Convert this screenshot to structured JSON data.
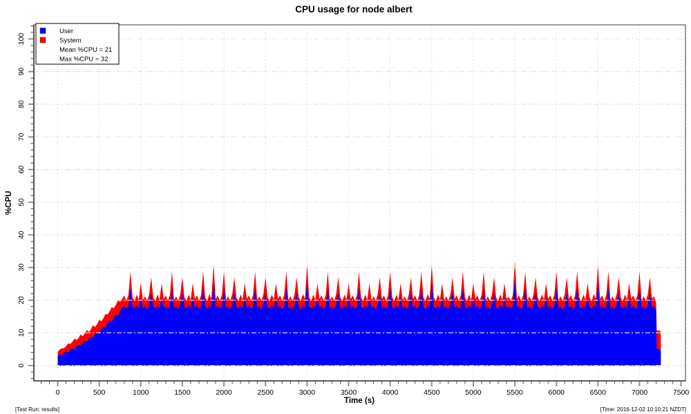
{
  "footer_left": "[Test Run: results]",
  "footer_right": "[Time: 2016-12-02 10:10:21 NZDT]",
  "chart_data": {
    "type": "area",
    "title": "CPU usage for node albert",
    "xlabel": "Time (s)",
    "ylabel": "%CPU",
    "xlim": [
      0,
      7500
    ],
    "ylim": [
      0,
      100
    ],
    "x_major_step": 500,
    "x_minor_step": 100,
    "y_major_step": 10,
    "y_minor_step": 2,
    "grid": true,
    "legend": {
      "position": "top-left",
      "entries": [
        {
          "label": "User",
          "color": "#0000ff"
        },
        {
          "label": "System",
          "color": "#ff0000"
        }
      ],
      "stats": [
        "Mean %CPU = 21",
        "Max %CPU = 32"
      ]
    },
    "stats": {
      "mean_cpu": 21,
      "max_cpu": 32
    },
    "colors": {
      "user": "#0000ff",
      "system": "#ff0000",
      "grid_v": "#e2e2e2",
      "grid_h": "#e6e6e6",
      "frame": "#8f8f8f",
      "axis": "#111111",
      "tick_major": "#8f8f8f",
      "tick_minor": "#444444"
    },
    "series_stacked": {
      "note": "user = blue bottom band, system = red thickness stacked on top; sampled every 25 s",
      "t0": 0,
      "dt": 25,
      "user": [
        3.0,
        3.3,
        3.1,
        3.8,
        4.2,
        4.0,
        4.8,
        5.2,
        5.0,
        5.9,
        6.3,
        6.1,
        7.0,
        7.6,
        7.3,
        8.2,
        8.8,
        8.5,
        9.6,
        10.3,
        10.0,
        11.2,
        12.0,
        11.6,
        13.0,
        13.8,
        13.4,
        14.8,
        15.6,
        15.2,
        16.6,
        17.7,
        18.3,
        17.4,
        18.1,
        23.8,
        17.9,
        17.5,
        18.4,
        17.6,
        20.9,
        17.5,
        18.2,
        17.2,
        18.6,
        22.4,
        17.9,
        17.5,
        18.4,
        17.6,
        20.9,
        17.7,
        18.3,
        17.4,
        18.1,
        23.8,
        17.5,
        18.2,
        17.2,
        18.6,
        22.4,
        17.9,
        17.5,
        18.4,
        17.6,
        20.9,
        17.7,
        18.3,
        17.4,
        18.1,
        23.8,
        18.0,
        17.3,
        18.5,
        17.8,
        25.6,
        17.7,
        18.3,
        17.4,
        18.1,
        23.8,
        17.5,
        18.2,
        17.2,
        18.6,
        22.4,
        17.9,
        17.5,
        18.4,
        17.6,
        20.9,
        17.7,
        18.3,
        17.4,
        18.1,
        23.8,
        17.5,
        18.2,
        17.2,
        18.6,
        22.4,
        17.9,
        17.5,
        18.4,
        17.6,
        20.9,
        17.7,
        18.3,
        17.4,
        18.1,
        23.8,
        17.5,
        18.2,
        17.2,
        18.6,
        22.4,
        18.0,
        17.3,
        18.5,
        17.8,
        25.6,
        17.9,
        17.5,
        18.4,
        17.6,
        20.9,
        17.7,
        18.3,
        17.4,
        18.1,
        23.8,
        17.5,
        18.2,
        17.2,
        18.6,
        22.4,
        17.9,
        17.5,
        18.4,
        17.6,
        20.9,
        17.7,
        18.3,
        17.4,
        18.1,
        23.8,
        17.9,
        17.5,
        18.4,
        17.6,
        20.9,
        17.5,
        18.2,
        17.2,
        18.6,
        22.4,
        17.7,
        18.3,
        17.4,
        18.1,
        23.8,
        17.9,
        17.5,
        18.4,
        17.6,
        20.9,
        17.5,
        18.2,
        17.2,
        18.6,
        22.4,
        17.7,
        18.3,
        17.4,
        18.1,
        23.8,
        18.0,
        17.3,
        18.5,
        17.8,
        25.6,
        17.9,
        17.5,
        18.4,
        17.6,
        20.9,
        17.5,
        18.2,
        17.2,
        18.6,
        22.4,
        17.7,
        18.3,
        17.4,
        18.1,
        23.8,
        17.9,
        17.5,
        18.4,
        17.6,
        20.9,
        17.7,
        18.3,
        17.4,
        18.1,
        23.8,
        17.5,
        18.2,
        17.2,
        18.6,
        22.4,
        17.9,
        17.5,
        18.4,
        17.6,
        20.9,
        17.8,
        18.1,
        17.5,
        18.3,
        26.5,
        17.7,
        18.3,
        17.4,
        18.1,
        23.8,
        17.5,
        18.2,
        17.2,
        18.6,
        22.4,
        17.9,
        17.5,
        18.4,
        17.6,
        20.9,
        17.7,
        18.3,
        17.4,
        18.1,
        23.8,
        17.5,
        18.2,
        17.2,
        18.6,
        22.4,
        17.7,
        18.3,
        17.4,
        18.1,
        23.8,
        17.9,
        17.5,
        18.4,
        17.6,
        20.9,
        18.0,
        17.3,
        18.5,
        17.8,
        25.6,
        17.7,
        18.3,
        17.4,
        18.1,
        23.8,
        17.5,
        18.2,
        17.2,
        18.6,
        22.4,
        17.9,
        17.5,
        18.4,
        17.6,
        20.9,
        17.7,
        18.3,
        17.4,
        18.1,
        23.8,
        17.5,
        18.2,
        17.2,
        18.6,
        22.4,
        17.8,
        18.2,
        16.8
      ],
      "system": [
        1.2,
        1.6,
        2.2,
        1.5,
        1.7,
        2.8,
        1.8,
        2.0,
        3.2,
        1.9,
        2.1,
        3.4,
        2.0,
        2.2,
        3.6,
        2.1,
        2.3,
        3.8,
        2.2,
        2.4,
        4.0,
        2.3,
        2.5,
        4.2,
        2.6,
        2.8,
        4.5,
        2.7,
        3.0,
        4.8,
        2.9,
        2.7,
        3.2,
        2.4,
        3.5,
        5.0,
        2.9,
        2.3,
        3.3,
        2.6,
        4.3,
        2.5,
        3.0,
        2.6,
        3.2,
        4.6,
        2.9,
        2.3,
        3.3,
        2.6,
        4.3,
        2.7,
        3.2,
        2.4,
        3.5,
        5.0,
        2.5,
        3.0,
        2.6,
        3.2,
        4.6,
        2.9,
        2.3,
        3.3,
        2.6,
        4.3,
        2.7,
        3.2,
        2.4,
        3.5,
        5.0,
        2.8,
        2.5,
        3.4,
        2.7,
        5.4,
        2.7,
        3.2,
        2.4,
        3.5,
        5.0,
        2.5,
        3.0,
        2.6,
        3.2,
        4.6,
        2.9,
        2.3,
        3.3,
        2.6,
        4.3,
        2.7,
        3.2,
        2.4,
        3.5,
        5.0,
        2.5,
        3.0,
        2.6,
        3.2,
        4.6,
        2.9,
        2.3,
        3.3,
        2.6,
        4.3,
        2.7,
        3.2,
        2.4,
        3.5,
        5.0,
        2.5,
        3.0,
        2.6,
        3.2,
        4.6,
        2.8,
        2.5,
        3.4,
        2.7,
        5.4,
        2.9,
        2.3,
        3.3,
        2.6,
        4.3,
        2.7,
        3.2,
        2.4,
        3.5,
        5.0,
        2.5,
        3.0,
        2.6,
        3.2,
        4.6,
        2.9,
        2.3,
        3.3,
        2.6,
        4.3,
        2.7,
        3.2,
        2.4,
        3.5,
        5.0,
        2.9,
        2.3,
        3.3,
        2.6,
        4.3,
        2.5,
        3.0,
        2.6,
        3.2,
        4.6,
        2.7,
        3.2,
        2.4,
        3.5,
        5.0,
        2.9,
        2.3,
        3.3,
        2.6,
        4.3,
        2.5,
        3.0,
        2.6,
        3.2,
        4.6,
        2.7,
        3.2,
        2.4,
        3.5,
        5.0,
        2.8,
        2.5,
        3.4,
        2.7,
        5.4,
        2.9,
        2.3,
        3.3,
        2.6,
        4.3,
        2.5,
        3.0,
        2.6,
        3.2,
        4.6,
        2.7,
        3.2,
        2.4,
        3.5,
        5.0,
        2.9,
        2.3,
        3.3,
        2.6,
        4.3,
        2.7,
        3.2,
        2.4,
        3.5,
        5.0,
        2.5,
        3.0,
        2.6,
        3.2,
        4.6,
        2.9,
        2.3,
        3.3,
        2.6,
        4.3,
        2.6,
        2.9,
        2.4,
        3.1,
        5.5,
        2.7,
        3.2,
        2.4,
        3.5,
        5.0,
        2.5,
        3.0,
        2.6,
        3.2,
        4.6,
        2.9,
        2.3,
        3.3,
        2.6,
        4.3,
        2.7,
        3.2,
        2.4,
        3.5,
        5.0,
        2.5,
        3.0,
        2.6,
        3.2,
        4.6,
        2.7,
        3.2,
        2.4,
        3.5,
        5.0,
        2.9,
        2.3,
        3.3,
        2.6,
        4.3,
        2.8,
        2.5,
        3.4,
        2.7,
        5.4,
        2.7,
        3.2,
        2.4,
        3.5,
        5.0,
        2.5,
        3.0,
        2.6,
        3.2,
        4.6,
        2.9,
        2.3,
        3.3,
        2.6,
        4.3,
        2.7,
        3.2,
        2.4,
        3.5,
        5.0,
        2.5,
        3.0,
        2.6,
        3.2,
        4.6,
        2.7,
        3.0,
        2.4
      ],
      "tail": {
        "t": [
          7202,
          7206,
          7252,
          7256
        ],
        "user": [
          15.0,
          5.2,
          4.8,
          4.4
        ],
        "system": [
          2.2,
          5.6,
          5.8,
          4.6
        ]
      }
    }
  }
}
